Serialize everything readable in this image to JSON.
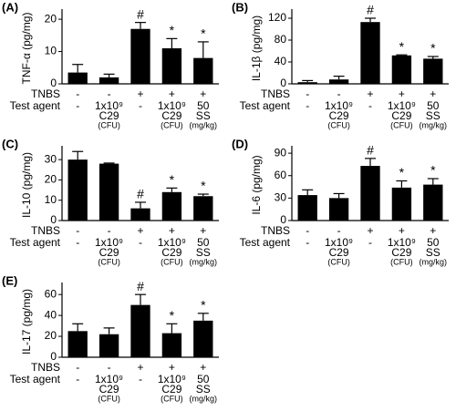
{
  "chart_data": [
    {
      "type": "bar",
      "panel": "(A)",
      "ylabel": "TNF-α (pg/mg)",
      "color": "#000000",
      "values": [
        3.5,
        2,
        17,
        11,
        8
      ],
      "errors": [
        2.5,
        1,
        2,
        3,
        5
      ],
      "annotations": [
        null,
        null,
        "#",
        "*",
        "*"
      ],
      "ylim": [
        0,
        22
      ],
      "yticks": [
        0,
        10,
        20
      ],
      "rows": [
        {
          "label": "TNBS",
          "cells": [
            [
              "-"
            ],
            [
              "-"
            ],
            [
              "+"
            ],
            [
              "+"
            ],
            [
              "+"
            ]
          ]
        },
        {
          "label": "Test agent",
          "cells": [
            [
              "-"
            ],
            [
              "1x10⁹",
              "C29",
              "(CFU)"
            ],
            [
              "-"
            ],
            [
              "1x10⁹",
              "C29",
              "(CFU)"
            ],
            [
              "50",
              "SS",
              "(mg/kg)"
            ]
          ]
        }
      ]
    },
    {
      "type": "bar",
      "panel": "(B)",
      "ylabel": "IL-1β (pg/mg)",
      "color": "#000000",
      "values": [
        3,
        8,
        113,
        52,
        46
      ],
      "errors": [
        3,
        6,
        7,
        1,
        4
      ],
      "annotations": [
        null,
        null,
        "#",
        "*",
        "*"
      ],
      "ylim": [
        0,
        130
      ],
      "yticks": [
        0,
        40,
        80,
        120
      ],
      "rows": [
        {
          "label": "TNBS",
          "cells": [
            [
              "-"
            ],
            [
              "-"
            ],
            [
              "+"
            ],
            [
              "+"
            ],
            [
              "+"
            ]
          ]
        },
        {
          "label": "Test agent",
          "cells": [
            [
              "-"
            ],
            [
              "1x10⁹",
              "C29",
              "(CFU)"
            ],
            [
              "-"
            ],
            [
              "1x10⁹",
              "C29",
              "(CFU)"
            ],
            [
              "50",
              "SS",
              "(mg/kg)"
            ]
          ]
        }
      ]
    },
    {
      "type": "bar",
      "panel": "(C)",
      "ylabel": "IL-10 (pg/mg)",
      "color": "#000000",
      "values": [
        30,
        28,
        6,
        14,
        12
      ],
      "errors": [
        4,
        0.3,
        3,
        2,
        1
      ],
      "annotations": [
        null,
        null,
        "#",
        "*",
        "*"
      ],
      "ylim": [
        0,
        35
      ],
      "yticks": [
        0,
        10,
        20,
        30
      ],
      "rows": [
        {
          "label": "TNBS",
          "cells": [
            [
              "-"
            ],
            [
              "-"
            ],
            [
              "+"
            ],
            [
              "+"
            ],
            [
              "+"
            ]
          ]
        },
        {
          "label": "Test agent",
          "cells": [
            [
              "-"
            ],
            [
              "1x10⁹",
              "C29",
              "(CFU)"
            ],
            [
              "-"
            ],
            [
              "1x10⁹",
              "C29",
              "(CFU)"
            ],
            [
              "50",
              "SS",
              "(mg/kg)"
            ]
          ]
        }
      ]
    },
    {
      "type": "bar",
      "panel": "(D)",
      "ylabel": "IL-6 (pg/mg)",
      "color": "#000000",
      "values": [
        34,
        30,
        73,
        44,
        48
      ],
      "errors": [
        7,
        6,
        10,
        9,
        8
      ],
      "annotations": [
        null,
        null,
        "#",
        "*",
        "*"
      ],
      "ylim": [
        0,
        95
      ],
      "yticks": [
        0,
        30,
        60,
        90
      ],
      "rows": [
        {
          "label": "TNBS",
          "cells": [
            [
              "-"
            ],
            [
              "-"
            ],
            [
              "+"
            ],
            [
              "+"
            ],
            [
              "+"
            ]
          ]
        },
        {
          "label": "Test agent",
          "cells": [
            [
              "-"
            ],
            [
              "1x10⁹",
              "C29",
              "(CFU)"
            ],
            [
              "-"
            ],
            [
              "1x10⁹",
              "C29",
              "(CFU)"
            ],
            [
              "50",
              "SS",
              "(mg/kg)"
            ]
          ]
        }
      ]
    },
    {
      "type": "bar",
      "panel": "(E)",
      "ylabel": "IL-17 (pg/mg)",
      "color": "#000000",
      "values": [
        25,
        22,
        50,
        23,
        35
      ],
      "errors": [
        7,
        6,
        10,
        9,
        7
      ],
      "annotations": [
        null,
        null,
        "#",
        "*",
        "*"
      ],
      "ylim": [
        0,
        68
      ],
      "yticks": [
        0,
        20,
        40,
        60
      ],
      "rows": [
        {
          "label": "TNBS",
          "cells": [
            [
              "-"
            ],
            [
              "-"
            ],
            [
              "+"
            ],
            [
              "+"
            ],
            [
              "+"
            ]
          ]
        },
        {
          "label": "Test agent",
          "cells": [
            [
              "-"
            ],
            [
              "1x10⁹",
              "C29",
              "(CFU)"
            ],
            [
              "-"
            ],
            [
              "1x10⁹",
              "C29",
              "(CFU)"
            ],
            [
              "50",
              "SS",
              "(mg/kg)"
            ]
          ]
        }
      ]
    }
  ]
}
